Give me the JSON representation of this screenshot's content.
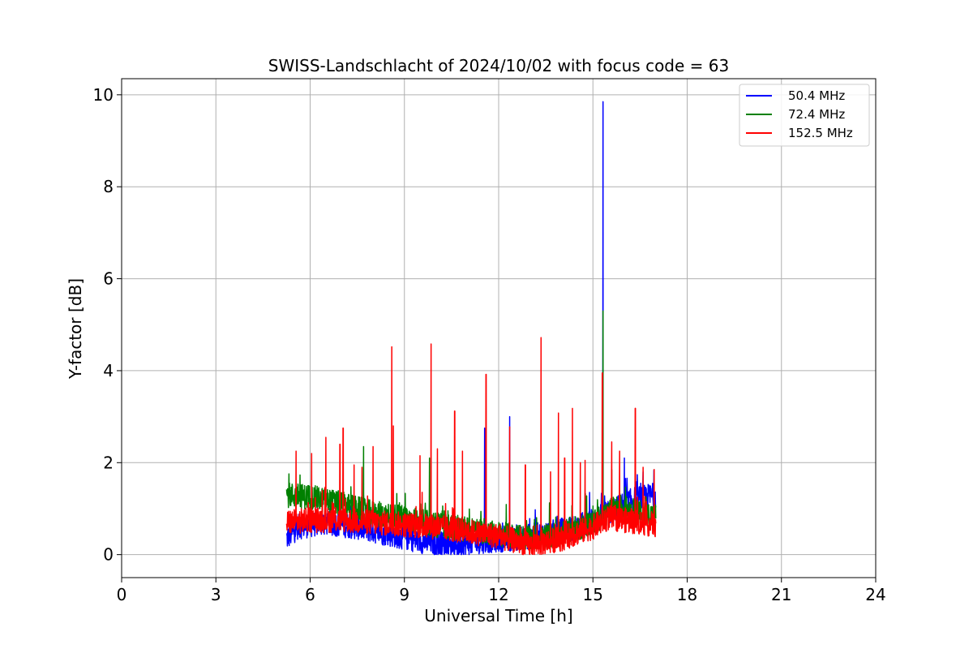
{
  "chart_data": {
    "type": "line",
    "title": "SWISS-Landschlacht of 2024/10/02 with focus code = 63",
    "xlabel": "Universal Time [h]",
    "ylabel": "Y-factor [dB]",
    "xlim": [
      0,
      24
    ],
    "ylim": [
      -0.5,
      10.35
    ],
    "xticks": [
      0,
      3,
      6,
      9,
      12,
      15,
      18,
      21,
      24
    ],
    "yticks": [
      0,
      2,
      4,
      6,
      8,
      10
    ],
    "xtick_labels": [
      "0",
      "3",
      "6",
      "9",
      "12",
      "15",
      "18",
      "21",
      "24"
    ],
    "ytick_labels": [
      "0",
      "2",
      "4",
      "6",
      "8",
      "10"
    ],
    "grid": true,
    "legend_position": "top-right",
    "series": [
      {
        "name": " 50.4 MHz",
        "color": "#0000ff",
        "time_range": [
          5.25,
          17.0
        ],
        "baseline": [
          [
            5.25,
            0.35
          ],
          [
            5.6,
            0.6
          ],
          [
            6.5,
            0.7
          ],
          [
            7.5,
            0.6
          ],
          [
            8.5,
            0.45
          ],
          [
            9.5,
            0.3
          ],
          [
            10.5,
            0.2
          ],
          [
            11.5,
            0.3
          ],
          [
            12.5,
            0.35
          ],
          [
            13.5,
            0.45
          ],
          [
            14.5,
            0.6
          ],
          [
            15.5,
            0.9
          ],
          [
            16.3,
            1.2
          ],
          [
            17.0,
            1.3
          ]
        ],
        "spikes": [
          [
            11.55,
            2.75
          ],
          [
            12.35,
            3.0
          ],
          [
            15.32,
            9.85
          ],
          [
            16.0,
            2.1
          ],
          [
            16.6,
            1.8
          ]
        ]
      },
      {
        "name": " 72.4 MHz",
        "color": "#008000",
        "time_range": [
          5.25,
          17.0
        ],
        "baseline": [
          [
            5.25,
            1.3
          ],
          [
            6.0,
            1.25
          ],
          [
            7.0,
            1.1
          ],
          [
            8.0,
            0.9
          ],
          [
            9.0,
            0.8
          ],
          [
            10.0,
            0.65
          ],
          [
            11.0,
            0.55
          ],
          [
            12.0,
            0.45
          ],
          [
            13.0,
            0.35
          ],
          [
            14.0,
            0.45
          ],
          [
            15.0,
            0.7
          ],
          [
            15.8,
            1.05
          ],
          [
            16.5,
            0.9
          ],
          [
            17.0,
            0.85
          ]
        ],
        "spikes": [
          [
            7.7,
            2.35
          ],
          [
            9.8,
            2.1
          ],
          [
            15.32,
            5.3
          ],
          [
            15.6,
            1.85
          ]
        ]
      },
      {
        "name": "152.5 MHz",
        "color": "#ff0000",
        "time_range": [
          5.25,
          17.0
        ],
        "baseline": [
          [
            5.25,
            0.7
          ],
          [
            6.0,
            0.75
          ],
          [
            7.0,
            0.75
          ],
          [
            8.0,
            0.7
          ],
          [
            9.0,
            0.65
          ],
          [
            10.0,
            0.6
          ],
          [
            11.0,
            0.5
          ],
          [
            12.0,
            0.4
          ],
          [
            13.0,
            0.2
          ],
          [
            14.0,
            0.35
          ],
          [
            15.0,
            0.6
          ],
          [
            15.5,
            0.8
          ],
          [
            16.5,
            0.7
          ],
          [
            17.0,
            0.65
          ]
        ],
        "spikes": [
          [
            5.55,
            2.25
          ],
          [
            6.05,
            2.2
          ],
          [
            6.5,
            2.55
          ],
          [
            6.95,
            2.4
          ],
          [
            7.05,
            2.75
          ],
          [
            7.4,
            1.95
          ],
          [
            7.65,
            1.9
          ],
          [
            8.0,
            2.35
          ],
          [
            8.6,
            4.52
          ],
          [
            8.65,
            2.8
          ],
          [
            9.5,
            2.15
          ],
          [
            9.85,
            4.58
          ],
          [
            10.05,
            2.3
          ],
          [
            10.6,
            3.12
          ],
          [
            10.85,
            2.25
          ],
          [
            11.6,
            3.92
          ],
          [
            12.35,
            2.78
          ],
          [
            12.85,
            1.95
          ],
          [
            13.35,
            4.72
          ],
          [
            13.65,
            1.8
          ],
          [
            13.9,
            3.08
          ],
          [
            14.1,
            2.1
          ],
          [
            14.35,
            3.18
          ],
          [
            14.6,
            2.0
          ],
          [
            14.75,
            2.05
          ],
          [
            15.3,
            3.95
          ],
          [
            15.6,
            2.45
          ],
          [
            15.85,
            2.25
          ],
          [
            16.35,
            3.18
          ],
          [
            16.6,
            1.9
          ],
          [
            16.95,
            1.85
          ]
        ]
      }
    ]
  }
}
